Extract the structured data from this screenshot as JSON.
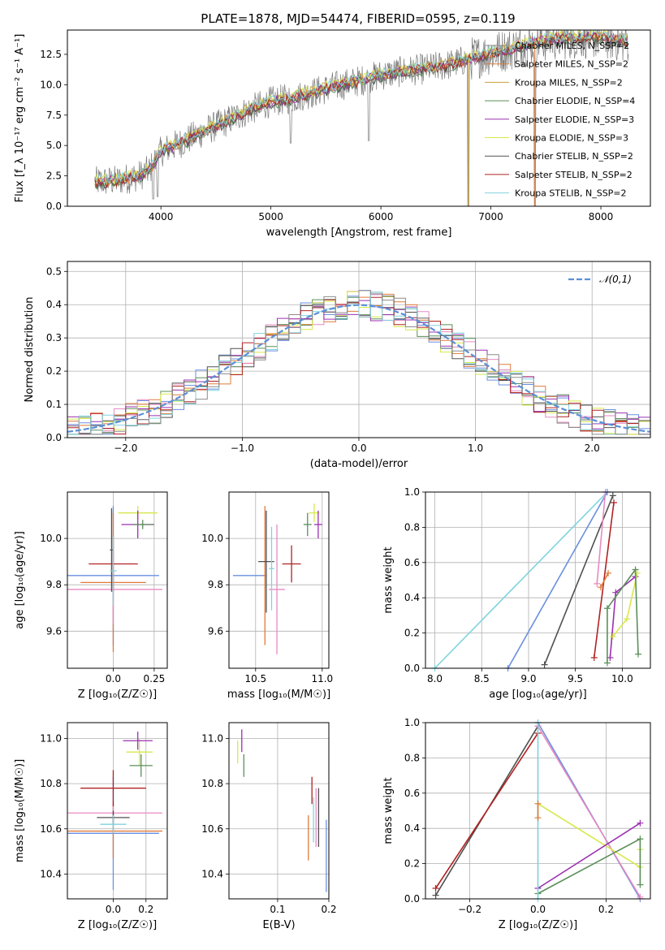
{
  "figure_title": "PLATE=1878, MJD=54474, FIBERID=0595, z=0.119",
  "colors": {
    "chabrier_miles": "#8c8c8c",
    "salpeter_miles": "#e07b39",
    "kroupa_miles": "#c8a23c",
    "chabrier_elodie": "#5a8f5a",
    "salpeter_elodie": "#9b30b0",
    "kroupa_elodie": "#d7e84a",
    "chabrier_stelib": "#505050",
    "salpeter_stelib": "#b22222",
    "kroupa_stelib": "#7fd3de",
    "blue": "#6a8fe0",
    "pink": "#e78ac3",
    "normal": "#5b8fd6"
  },
  "chart_data": [
    {
      "id": "spectrum",
      "type": "line",
      "title": "PLATE=1878, MJD=54474, FIBERID=0595, z=0.119",
      "xlabel": "wavelength [Angstrom, rest frame]",
      "ylabel": "Flux [f_λ 10⁻¹⁷ erg cm⁻² s⁻¹ A⁻¹]",
      "xlim": [
        3150,
        8450
      ],
      "ylim": [
        0,
        14.5
      ],
      "xticks": [
        4000,
        5000,
        6000,
        7000,
        8000
      ],
      "yticks": [
        0.0,
        2.5,
        5.0,
        7.5,
        10.0,
        12.5
      ],
      "legend_position": "right",
      "legend": [
        {
          "label": "Chabrier MILES, N_SSP=2",
          "color": "#8c8c8c"
        },
        {
          "label": "Salpeter MILES, N_SSP=2",
          "color": "#e07b39"
        },
        {
          "label": "Kroupa MILES, N_SSP=2",
          "color": "#c8a23c"
        },
        {
          "label": "Chabrier ELODIE, N_SSP=4",
          "color": "#5a8f5a"
        },
        {
          "label": "Salpeter ELODIE, N_SSP=3",
          "color": "#9b30b0"
        },
        {
          "label": "Kroupa ELODIE, N_SSP=3",
          "color": "#d7e84a"
        },
        {
          "label": "Chabrier STELIB, N_SSP=2",
          "color": "#505050"
        },
        {
          "label": "Salpeter STELIB, N_SSP=2",
          "color": "#b22222"
        },
        {
          "label": "Kroupa STELIB, N_SSP=2",
          "color": "#7fd3de"
        }
      ],
      "continuum": {
        "x": [
          3400,
          3600,
          3800,
          3900,
          4000,
          4200,
          4400,
          4600,
          4800,
          5000,
          5200,
          5400,
          5600,
          5800,
          6000,
          6200,
          6400,
          6600,
          6800,
          7000,
          7200,
          7400,
          7600,
          7800,
          8000,
          8200
        ],
        "y": [
          2.0,
          2.1,
          2.5,
          3.0,
          4.5,
          5.3,
          6.2,
          7.0,
          7.9,
          8.6,
          8.9,
          9.4,
          9.9,
          10.3,
          10.8,
          11.1,
          11.3,
          11.6,
          12.1,
          12.6,
          13.0,
          13.5,
          13.8,
          13.9,
          13.9,
          13.6
        ]
      },
      "drops": [
        {
          "x": 3930,
          "y": 0.6
        },
        {
          "x": 3970,
          "y": 0.8
        },
        {
          "x": 5180,
          "y": 5.2
        },
        {
          "x": 5890,
          "y": 5.4
        },
        {
          "x": 6795,
          "y": 0.0
        },
        {
          "x": 7400,
          "y": 0.0
        }
      ]
    },
    {
      "id": "residuals",
      "type": "histogram",
      "xlabel": "(data-model)/error",
      "ylabel": "Normed distribution",
      "xlim": [
        -2.5,
        2.5
      ],
      "ylim": [
        0,
        0.53
      ],
      "xticks": [
        -2,
        -1,
        0,
        1,
        2
      ],
      "yticks": [
        0.0,
        0.1,
        0.2,
        0.3,
        0.4,
        0.5
      ],
      "grid": true,
      "legend": [
        {
          "label": "𝒩(0,1)",
          "style": "dashed",
          "color": "#5b8fd6"
        }
      ],
      "bin_width": 0.1
    },
    {
      "id": "age_vs_Z",
      "type": "scatter",
      "xlabel": "Z [log₁₀(Z/Z☉)]",
      "ylabel": "age  [log₁₀(age/yr)]",
      "xlim": [
        -0.28,
        0.33
      ],
      "ylim": [
        9.44,
        10.2
      ],
      "xticks": [
        0.0,
        0.25
      ],
      "yticks": [
        9.6,
        9.8,
        10.0
      ],
      "grid": true,
      "points": [
        {
          "x": 0.0,
          "y": 9.84,
          "xerr": 0.28,
          "yerr": 0.3,
          "color": "#6a8fe0"
        },
        {
          "x": 0.0,
          "y": 9.81,
          "xerr": 0.2,
          "yerr": 0.3,
          "color": "#e07b39"
        },
        {
          "x": 0.0,
          "y": 9.78,
          "xerr": 0.3,
          "yerr": 0.15,
          "color": "#e78ac3"
        },
        {
          "x": 0.0,
          "y": 9.89,
          "xerr": 0.15,
          "yerr": 0.12,
          "color": "#b22222"
        },
        {
          "x": -0.01,
          "y": 9.95,
          "xerr": 0.01,
          "yerr": 0.18,
          "color": "#505050"
        },
        {
          "x": 0.0,
          "y": 9.86,
          "xerr": 0.02,
          "yerr": 0.15,
          "color": "#7fd3de"
        },
        {
          "x": 0.15,
          "y": 10.11,
          "xerr": 0.12,
          "yerr": 0.03,
          "color": "#d7e84a"
        },
        {
          "x": 0.15,
          "y": 10.06,
          "xerr": 0.1,
          "yerr": 0.06,
          "color": "#9b30b0"
        },
        {
          "x": 0.18,
          "y": 10.06,
          "xerr": 0.06,
          "yerr": 0.02,
          "color": "#5a8f5a"
        }
      ]
    },
    {
      "id": "age_vs_mass",
      "type": "scatter",
      "xlabel": "mass [log₁₀(M/M☉)]",
      "ylabel": "",
      "xlim": [
        10.3,
        11.05
      ],
      "ylim": [
        9.44,
        10.2
      ],
      "xticks": [
        10.5,
        11.0
      ],
      "yticks": [
        9.6,
        9.8,
        10.0
      ],
      "grid": true,
      "points": [
        {
          "x": 10.45,
          "y": 9.84,
          "xerr": 0.12,
          "yerr": 0.0,
          "color": "#6a8fe0"
        },
        {
          "x": 10.57,
          "y": 9.84,
          "xerr": 0.01,
          "yerr": 0.3,
          "color": "#e07b39"
        },
        {
          "x": 10.66,
          "y": 9.78,
          "xerr": 0.06,
          "yerr": 0.28,
          "color": "#e78ac3"
        },
        {
          "x": 10.77,
          "y": 9.89,
          "xerr": 0.07,
          "yerr": 0.08,
          "color": "#b22222"
        },
        {
          "x": 10.58,
          "y": 9.9,
          "xerr": 0.06,
          "yerr": 0.22,
          "color": "#505050"
        },
        {
          "x": 10.62,
          "y": 9.87,
          "xerr": 0.02,
          "yerr": 0.18,
          "color": "#7fd3de"
        },
        {
          "x": 10.94,
          "y": 10.11,
          "xerr": 0.04,
          "yerr": 0.04,
          "color": "#d7e84a"
        },
        {
          "x": 10.97,
          "y": 10.06,
          "xerr": 0.03,
          "yerr": 0.06,
          "color": "#9b30b0"
        },
        {
          "x": 10.89,
          "y": 10.06,
          "xerr": 0.03,
          "yerr": 0.05,
          "color": "#5a8f5a"
        }
      ]
    },
    {
      "id": "mass_weight_vs_age",
      "type": "line",
      "xlabel": "age  [log₁₀(age/yr)]",
      "ylabel": "mass weight",
      "xlim": [
        7.9,
        10.3
      ],
      "ylim": [
        0,
        1.0
      ],
      "xticks": [
        8.0,
        8.5,
        9.0,
        9.5,
        10.0
      ],
      "yticks": [
        0.0,
        0.2,
        0.4,
        0.6,
        0.8,
        1.0
      ],
      "grid": true,
      "series": [
        {
          "color": "#7fd3de",
          "x": [
            8.0,
            9.84
          ],
          "y": [
            0.0,
            1.0
          ]
        },
        {
          "color": "#6a8fe0",
          "x": [
            8.78,
            9.84
          ],
          "y": [
            0.0,
            1.0
          ]
        },
        {
          "color": "#505050",
          "x": [
            9.17,
            9.9
          ],
          "y": [
            0.02,
            0.98
          ]
        },
        {
          "color": "#b22222",
          "x": [
            9.7,
            9.91
          ],
          "y": [
            0.06,
            0.94
          ]
        },
        {
          "color": "#e78ac3",
          "x": [
            9.73,
            9.82
          ],
          "y": [
            0.48,
            1.0
          ]
        },
        {
          "color": "#e07b39",
          "x": [
            9.77,
            9.85
          ],
          "y": [
            0.46,
            0.54
          ]
        },
        {
          "color": "#9b30b0",
          "x": [
            9.87,
            9.93,
            10.14
          ],
          "y": [
            0.06,
            0.43,
            0.52
          ]
        },
        {
          "color": "#d7e84a",
          "x": [
            9.9,
            10.05,
            10.16
          ],
          "y": [
            0.18,
            0.28,
            0.54
          ]
        },
        {
          "color": "#5a8f5a",
          "x": [
            9.84,
            9.84,
            10.14,
            10.17
          ],
          "y": [
            0.03,
            0.34,
            0.56,
            0.08
          ]
        }
      ]
    },
    {
      "id": "mass_vs_Z",
      "type": "scatter",
      "xlabel": "Z [log₁₀(Z/Z☉)]",
      "ylabel": "mass [log₁₀(M/M☉)]",
      "xlim": [
        -0.28,
        0.33
      ],
      "ylim": [
        10.29,
        11.07
      ],
      "xticks": [
        0.0,
        0.2
      ],
      "yticks": [
        10.4,
        10.6,
        10.8,
        11.0
      ],
      "grid": true,
      "points": [
        {
          "x": 0.0,
          "y": 10.58,
          "xerr": 0.28,
          "yerr": 0.25,
          "color": "#6a8fe0"
        },
        {
          "x": 0.0,
          "y": 10.59,
          "xerr": 0.3,
          "yerr": 0.12,
          "color": "#e07b39"
        },
        {
          "x": 0.0,
          "y": 10.67,
          "xerr": 0.3,
          "yerr": 0.05,
          "color": "#e78ac3"
        },
        {
          "x": 0.0,
          "y": 10.78,
          "xerr": 0.2,
          "yerr": 0.08,
          "color": "#b22222"
        },
        {
          "x": 0.0,
          "y": 10.65,
          "xerr": 0.1,
          "yerr": 0.03,
          "color": "#505050"
        },
        {
          "x": 0.0,
          "y": 10.62,
          "xerr": 0.08,
          "yerr": 0.04,
          "color": "#7fd3de"
        },
        {
          "x": 0.16,
          "y": 10.94,
          "xerr": 0.08,
          "yerr": 0.06,
          "color": "#d7e84a"
        },
        {
          "x": 0.15,
          "y": 10.99,
          "xerr": 0.09,
          "yerr": 0.04,
          "color": "#9b30b0"
        },
        {
          "x": 0.17,
          "y": 10.88,
          "xerr": 0.07,
          "yerr": 0.05,
          "color": "#5a8f5a"
        }
      ]
    },
    {
      "id": "mass_vs_ebv",
      "type": "scatter",
      "xlabel": "E(B-V)",
      "ylabel": "",
      "xlim": [
        0.005,
        0.2
      ],
      "ylim": [
        10.29,
        11.07
      ],
      "xticks": [
        0.1,
        0.2
      ],
      "yticks": [
        10.4,
        10.6,
        10.8,
        11.0
      ],
      "grid": true,
      "points": [
        {
          "x": 0.022,
          "y": 10.94,
          "xerr": 0.0,
          "yerr": 0.05,
          "color": "#d7e84a"
        },
        {
          "x": 0.03,
          "y": 10.99,
          "xerr": 0.0,
          "yerr": 0.05,
          "color": "#9b30b0"
        },
        {
          "x": 0.034,
          "y": 10.88,
          "xerr": 0.0,
          "yerr": 0.05,
          "color": "#5a8f5a"
        },
        {
          "x": 0.16,
          "y": 10.56,
          "xerr": 0.0,
          "yerr": 0.1,
          "color": "#e07b39"
        },
        {
          "x": 0.167,
          "y": 10.77,
          "xerr": 0.0,
          "yerr": 0.06,
          "color": "#b22222"
        },
        {
          "x": 0.17,
          "y": 10.64,
          "xerr": 0.0,
          "yerr": 0.1,
          "color": "#7fd3de"
        },
        {
          "x": 0.175,
          "y": 10.65,
          "xerr": 0.0,
          "yerr": 0.13,
          "color": "#e78ac3"
        },
        {
          "x": 0.18,
          "y": 10.65,
          "xerr": 0.0,
          "yerr": 0.13,
          "color": "#505050"
        },
        {
          "x": 0.195,
          "y": 10.48,
          "xerr": 0.0,
          "yerr": 0.16,
          "color": "#6a8fe0"
        }
      ]
    },
    {
      "id": "mass_weight_vs_Z",
      "type": "line",
      "xlabel": "Z [log₁₀(Z/Z☉)]",
      "ylabel": "mass weight",
      "xlim": [
        -0.33,
        0.33
      ],
      "ylim": [
        0,
        1.0
      ],
      "xticks": [
        -0.2,
        0.0,
        0.2
      ],
      "yticks": [
        0.0,
        0.2,
        0.4,
        0.6,
        0.8,
        1.0
      ],
      "grid": true,
      "series": [
        {
          "color": "#505050",
          "x": [
            -0.3,
            0.0
          ],
          "y": [
            0.02,
            0.98
          ]
        },
        {
          "color": "#b22222",
          "x": [
            -0.3,
            0.0
          ],
          "y": [
            0.06,
            0.94
          ]
        },
        {
          "color": "#6a8fe0",
          "x": [
            0.0,
            0.3
          ],
          "y": [
            1.0,
            0.0
          ]
        },
        {
          "color": "#e78ac3",
          "x": [
            0.0,
            0.3
          ],
          "y": [
            0.98,
            0.01
          ]
        },
        {
          "color": "#d7e84a",
          "x": [
            0.0,
            0.3,
            0.3
          ],
          "y": [
            0.54,
            0.18,
            0.28
          ]
        },
        {
          "color": "#9b30b0",
          "x": [
            0.0,
            0.3
          ],
          "y": [
            0.06,
            0.43
          ]
        },
        {
          "color": "#5a8f5a",
          "x": [
            0.0,
            0.3,
            0.3
          ],
          "y": [
            0.03,
            0.34,
            0.08
          ]
        },
        {
          "color": "#7fd3de",
          "x": [
            0.0,
            0.0
          ],
          "y": [
            0.0,
            1.0
          ]
        },
        {
          "color": "#e07b39",
          "x": [
            0.0,
            0.0
          ],
          "y": [
            0.46,
            0.54
          ]
        }
      ]
    }
  ]
}
